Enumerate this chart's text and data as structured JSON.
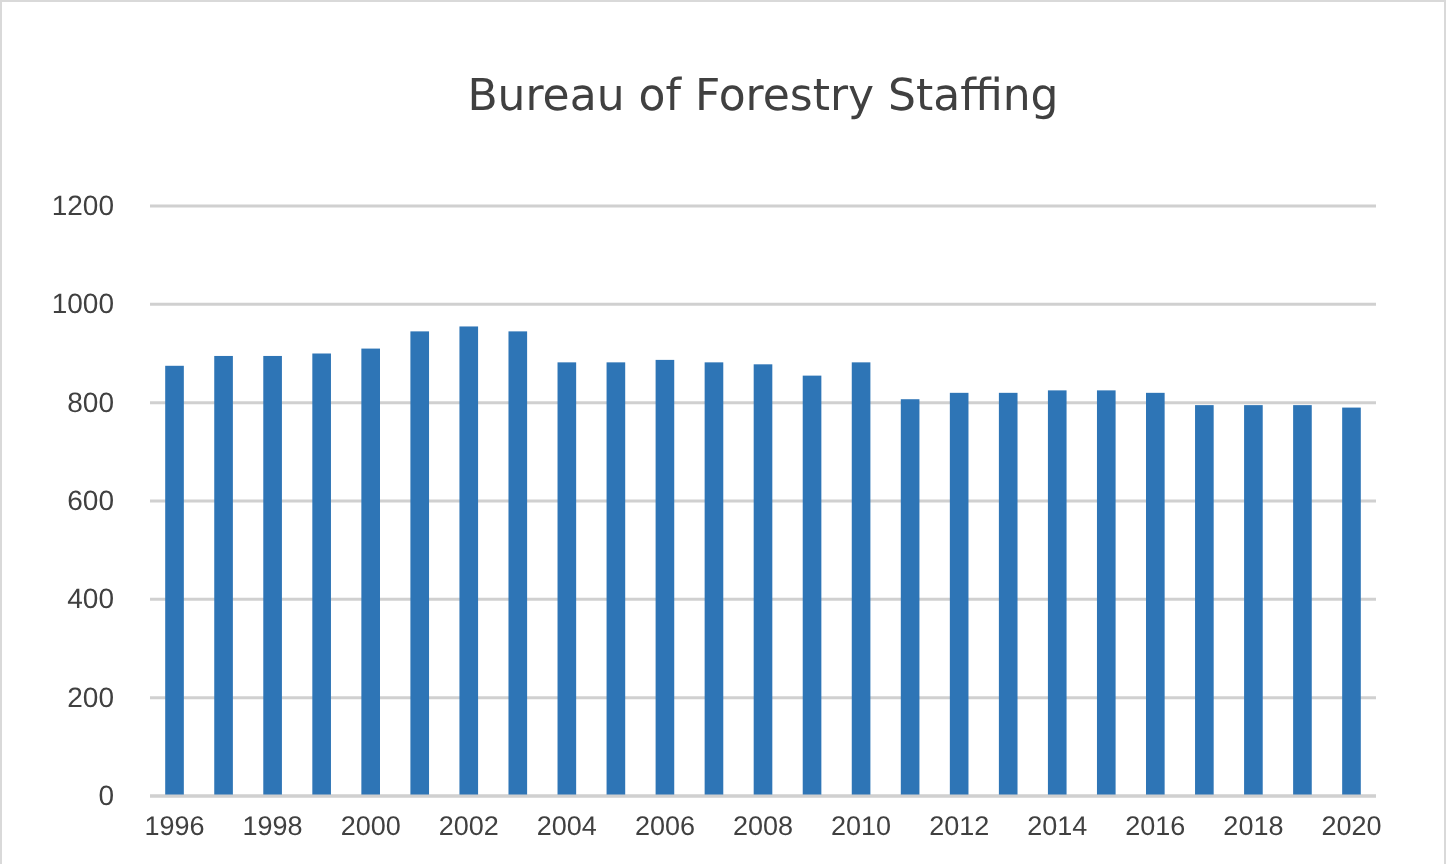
{
  "chart_data": {
    "type": "bar",
    "title": "Bureau of Forestry Staffing",
    "categories": [
      "1996",
      null,
      "1998",
      null,
      "2000",
      null,
      "2002",
      null,
      "2004",
      null,
      "2006",
      null,
      "2008",
      null,
      "2010",
      null,
      "2012",
      null,
      "2014",
      null,
      "2016",
      null,
      "2018",
      null,
      "2020"
    ],
    "values": [
      875,
      895,
      895,
      900,
      910,
      945,
      955,
      945,
      882,
      882,
      887,
      882,
      878,
      855,
      882,
      807,
      820,
      820,
      825,
      825,
      820,
      795,
      795,
      795,
      790
    ],
    "color": "#2e75b6",
    "ylim": [
      0,
      1200
    ],
    "yticks": [
      0,
      200,
      400,
      600,
      800,
      1000,
      1200
    ],
    "grid": "y"
  }
}
